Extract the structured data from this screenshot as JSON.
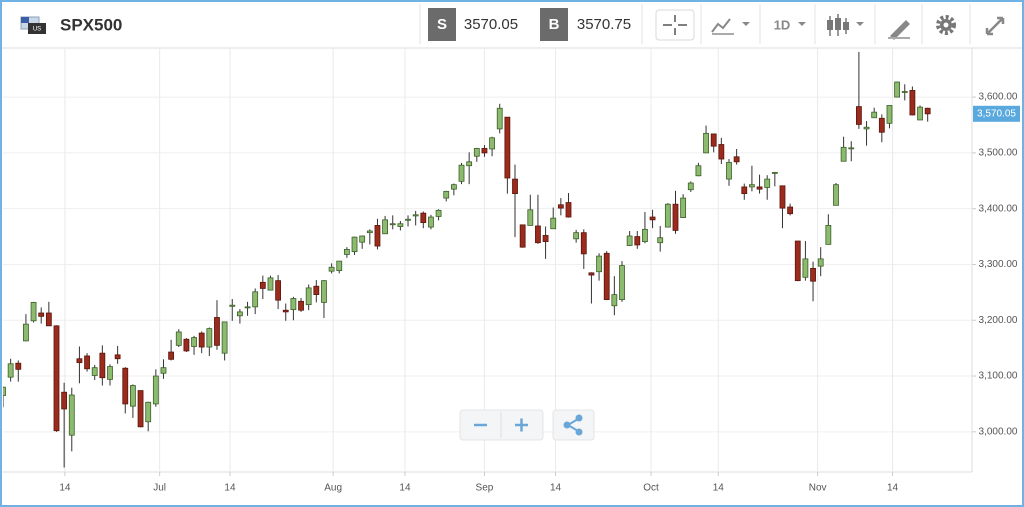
{
  "toolbar": {
    "symbol": "SPX500",
    "sell_label": "S",
    "sell_price": "3570.05",
    "buy_label": "B",
    "buy_price": "3570.75",
    "interval": "1D"
  },
  "chart_data": {
    "type": "candlestick",
    "up_color": "#8cba6e",
    "up_edge": "#3d5f2a",
    "down_color": "#9b2b1c",
    "down_edge": "#5a170e",
    "grid": true,
    "ylim": [
      2928,
      3688
    ],
    "yticks": [
      {
        "value": 3000,
        "label": "3,000.00"
      },
      {
        "value": 3100,
        "label": "3,100.00"
      },
      {
        "value": 3200,
        "label": "3,200.00"
      },
      {
        "value": 3300,
        "label": "3,300.00"
      },
      {
        "value": 3400,
        "label": "3,400.00"
      },
      {
        "value": 3500,
        "label": "3,500.00"
      },
      {
        "value": 3600,
        "label": "3,600.00"
      }
    ],
    "xlim": [
      0,
      126.8
    ],
    "xticks": [
      {
        "value": 8.1,
        "label": "14"
      },
      {
        "value": 20.5,
        "label": "Jul"
      },
      {
        "value": 29.7,
        "label": "14"
      },
      {
        "value": 43.2,
        "label": "Aug"
      },
      {
        "value": 52.6,
        "label": "14"
      },
      {
        "value": 63,
        "label": "Sep"
      },
      {
        "value": 72.3,
        "label": "14"
      },
      {
        "value": 84.8,
        "label": "Oct"
      },
      {
        "value": 93.6,
        "label": "14"
      },
      {
        "value": 106.6,
        "label": "Nov"
      },
      {
        "value": 116.4,
        "label": "14"
      }
    ],
    "last_price": {
      "value": 3570.05,
      "label": "3,570.05"
    },
    "open": [
      3065,
      3098,
      3123,
      3163,
      3199,
      3213,
      3213,
      3190,
      3071,
      2994,
      3131,
      3136,
      3101,
      3141,
      3094,
      3138,
      3114,
      3046,
      3074,
      3018,
      3050,
      3105,
      3143,
      3155,
      3166,
      3153,
      3177,
      3152,
      3205,
      3141,
      3225,
      3208,
      3224,
      3224,
      3268,
      3254,
      3271,
      3218,
      3219,
      3234,
      3228,
      3261,
      3232,
      3288,
      3289,
      3318,
      3323,
      3340,
      3357,
      3370,
      3355,
      3372,
      3368,
      3380,
      3387,
      3392,
      3367,
      3386,
      3419,
      3435,
      3449,
      3477,
      3494,
      3508,
      3507,
      3543,
      3564,
      3453,
      3371,
      3370,
      3369,
      3352,
      3364,
      3407,
      3411,
      3346,
      3357,
      3285,
      3287,
      3320,
      3226,
      3237,
      3334,
      3350,
      3341,
      3385,
      3339,
      3367,
      3408,
      3384,
      3434,
      3459,
      3500,
      3534,
      3515,
      3453,
      3493,
      3439,
      3439,
      3439,
      3438,
      3464,
      3441,
      3403,
      3342,
      3277,
      3293,
      3297,
      3336,
      3406,
      3485,
      3508,
      3583,
      3543,
      3563,
      3562,
      3553,
      3600,
      3610,
      3612,
      3559,
      3580
    ],
    "high": [
      3081,
      3131,
      3128,
      3211,
      3233,
      3223,
      3233,
      3191,
      3088,
      3079,
      3153,
      3141,
      3120,
      3155,
      3121,
      3154,
      3116,
      3085,
      3074,
      3054,
      3112,
      3130,
      3165,
      3184,
      3168,
      3172,
      3180,
      3187,
      3236,
      3191,
      3238,
      3220,
      3233,
      3257,
      3280,
      3280,
      3281,
      3230,
      3242,
      3240,
      3264,
      3272,
      3272,
      3302,
      3306,
      3331,
      3350,
      3352,
      3363,
      3382,
      3387,
      3388,
      3378,
      3388,
      3396,
      3395,
      3389,
      3399,
      3432,
      3445,
      3482,
      3501,
      3509,
      3514,
      3529,
      3588,
      3564,
      3479,
      3369,
      3425,
      3425,
      3368,
      3402,
      3419,
      3428,
      3362,
      3363,
      3286,
      3320,
      3324,
      3279,
      3306,
      3360,
      3360,
      3394,
      3398,
      3369,
      3410,
      3432,
      3426,
      3449,
      3482,
      3549,
      3534,
      3527,
      3489,
      3507,
      3445,
      3477,
      3461,
      3460,
      3466,
      3441,
      3409,
      3342,
      3342,
      3305,
      3331,
      3390,
      3446,
      3529,
      3521,
      3681,
      3557,
      3581,
      3569,
      3585,
      3628,
      3623,
      3619,
      3585,
      3581
    ],
    "low": [
      3044,
      3090,
      3090,
      3162,
      3196,
      3194,
      3191,
      3000,
      2936,
      2965,
      3087,
      3108,
      3093,
      3083,
      3083,
      3122,
      3033,
      3025,
      3008,
      3001,
      3045,
      3095,
      3128,
      3152,
      3143,
      3138,
      3141,
      3136,
      3147,
      3128,
      3199,
      3194,
      3208,
      3211,
      3238,
      3254,
      3220,
      3199,
      3200,
      3215,
      3218,
      3232,
      3204,
      3284,
      3284,
      3312,
      3317,
      3328,
      3336,
      3327,
      3355,
      3363,
      3361,
      3368,
      3370,
      3365,
      3363,
      3379,
      3413,
      3424,
      3444,
      3444,
      3484,
      3493,
      3494,
      3535,
      3427,
      3349,
      3330,
      3370,
      3337,
      3310,
      3364,
      3388,
      3384,
      3339,
      3292,
      3230,
      3271,
      3236,
      3209,
      3233,
      3333,
      3328,
      3338,
      3365,
      3323,
      3367,
      3355,
      3384,
      3430,
      3458,
      3500,
      3501,
      3480,
      3441,
      3479,
      3416,
      3431,
      3427,
      3416,
      3440,
      3365,
      3388,
      3270,
      3271,
      3234,
      3279,
      3336,
      3406,
      3485,
      3485,
      3543,
      3513,
      3563,
      3519,
      3544,
      3600,
      3594,
      3567,
      3559,
      3556
    ],
    "close": [
      3080,
      3122,
      3112,
      3193,
      3232,
      3207,
      3190,
      3002,
      3041,
      3066,
      3124,
      3113,
      3115,
      3097,
      3117,
      3131,
      3050,
      3083,
      3009,
      3053,
      3100,
      3115,
      3130,
      3179,
      3145,
      3169,
      3152,
      3185,
      3155,
      3197,
      3227,
      3215,
      3224,
      3251,
      3257,
      3276,
      3236,
      3215,
      3239,
      3218,
      3258,
      3246,
      3271,
      3295,
      3306,
      3327,
      3349,
      3351,
      3360,
      3333,
      3380,
      3373,
      3373,
      3381,
      3389,
      3375,
      3385,
      3397,
      3431,
      3443,
      3478,
      3484,
      3508,
      3500,
      3527,
      3580,
      3455,
      3427,
      3331,
      3398,
      3339,
      3341,
      3383,
      3401,
      3385,
      3357,
      3319,
      3281,
      3315,
      3237,
      3246,
      3298,
      3351,
      3335,
      3363,
      3380,
      3348,
      3408,
      3361,
      3419,
      3446,
      3477,
      3535,
      3512,
      3489,
      3483,
      3484,
      3427,
      3443,
      3435,
      3453,
      3465,
      3401,
      3391,
      3271,
      3310,
      3270,
      3310,
      3370,
      3443,
      3510,
      3509,
      3551,
      3546,
      3573,
      3537,
      3585,
      3627,
      3610,
      3568,
      3582,
      3570
    ]
  }
}
